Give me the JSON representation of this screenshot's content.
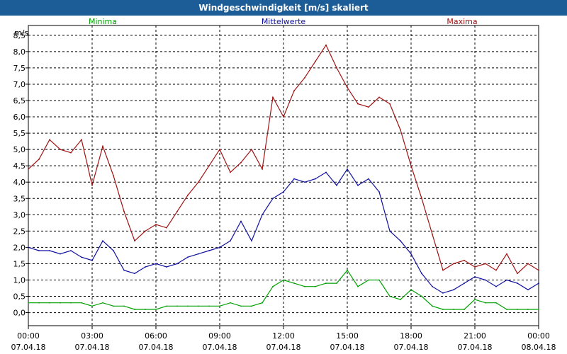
{
  "window": {
    "title": "Windgeschwindigkeit [m/s] skaliert"
  },
  "chart_data": {
    "type": "line",
    "title": "Windgeschwindigkeit [m/s] skaliert",
    "ylabel": "m/s",
    "ylim": [
      -0.4,
      8.8
    ],
    "xlim": [
      0,
      24
    ],
    "yticks": [
      0,
      0.5,
      1,
      1.5,
      2,
      2.5,
      3,
      3.5,
      4,
      4.5,
      5,
      5.5,
      6,
      6.5,
      7,
      7.5,
      8,
      8.5
    ],
    "ytick_labels": [
      "0,0",
      "0,5",
      "1,0",
      "1,5",
      "2,0",
      "2,5",
      "3,0",
      "3,5",
      "4,0",
      "4,5",
      "5,0",
      "5,5",
      "6,0",
      "6,5",
      "7,0",
      "7,5",
      "8,0",
      "8,5"
    ],
    "xticks": [
      0,
      3,
      6,
      9,
      12,
      15,
      18,
      21,
      24
    ],
    "xtick_times": [
      "00:00",
      "03:00",
      "06:00",
      "09:00",
      "12:00",
      "15:00",
      "18:00",
      "21:00",
      "00:00"
    ],
    "xtick_dates": [
      "07.04.18",
      "07.04.18",
      "07.04.18",
      "07.04.18",
      "07.04.18",
      "07.04.18",
      "07.04.18",
      "07.04.18",
      "08.04.18"
    ],
    "grid": true,
    "legend": [
      {
        "label": "Minima",
        "color": "#00a000",
        "position": "top-left"
      },
      {
        "label": "Mittelwerte",
        "color": "#1010a0",
        "position": "top-center"
      },
      {
        "label": "Maxima",
        "color": "#a01010",
        "position": "top-right"
      }
    ],
    "x": [
      0,
      0.5,
      1,
      1.5,
      2,
      2.5,
      3,
      3.5,
      4,
      4.5,
      5,
      5.5,
      6,
      6.5,
      7,
      7.5,
      8,
      8.5,
      9,
      9.5,
      10,
      10.5,
      11,
      11.5,
      12,
      12.5,
      13,
      13.5,
      14,
      14.5,
      15,
      15.5,
      16,
      16.5,
      17,
      17.5,
      18,
      18.5,
      19,
      19.5,
      20,
      20.5,
      21,
      21.5,
      22,
      22.5,
      23,
      23.5,
      24
    ],
    "series": [
      {
        "name": "Maxima",
        "color": "#a01010",
        "values": [
          4.4,
          4.7,
          5.3,
          5.0,
          4.9,
          5.3,
          3.9,
          5.1,
          4.2,
          3.1,
          2.2,
          2.5,
          2.7,
          2.6,
          3.1,
          3.6,
          4.0,
          4.5,
          5.0,
          4.3,
          4.6,
          5.0,
          4.4,
          6.6,
          6.0,
          6.8,
          7.2,
          7.7,
          8.2,
          7.5,
          6.9,
          6.4,
          6.3,
          6.6,
          6.4,
          5.6,
          4.5,
          3.5,
          2.4,
          1.3,
          1.5,
          1.6,
          1.4,
          1.5,
          1.3,
          1.8,
          1.2,
          1.5,
          1.3
        ]
      },
      {
        "name": "Mittelwerte",
        "color": "#1010a0",
        "values": [
          2.0,
          1.9,
          1.9,
          1.8,
          1.9,
          1.7,
          1.6,
          2.2,
          1.9,
          1.3,
          1.2,
          1.4,
          1.5,
          1.4,
          1.5,
          1.7,
          1.8,
          1.9,
          2.0,
          2.2,
          2.8,
          2.2,
          3.0,
          3.5,
          3.7,
          4.1,
          4.0,
          4.1,
          4.3,
          3.9,
          4.4,
          3.9,
          4.1,
          3.7,
          2.5,
          2.2,
          1.8,
          1.2,
          0.8,
          0.6,
          0.7,
          0.9,
          1.1,
          1.0,
          0.8,
          1.0,
          0.9,
          0.7,
          0.9
        ]
      },
      {
        "name": "Minima",
        "color": "#00a000",
        "values": [
          0.3,
          0.3,
          0.3,
          0.3,
          0.3,
          0.3,
          0.2,
          0.3,
          0.2,
          0.2,
          0.1,
          0.1,
          0.1,
          0.2,
          0.2,
          0.2,
          0.2,
          0.2,
          0.2,
          0.3,
          0.2,
          0.2,
          0.3,
          0.8,
          1.0,
          0.9,
          0.8,
          0.8,
          0.9,
          0.9,
          1.3,
          0.8,
          1.0,
          1.0,
          0.5,
          0.4,
          0.7,
          0.5,
          0.2,
          0.1,
          0.1,
          0.1,
          0.4,
          0.3,
          0.3,
          0.1,
          0.1,
          0.1,
          0.1
        ]
      }
    ]
  }
}
